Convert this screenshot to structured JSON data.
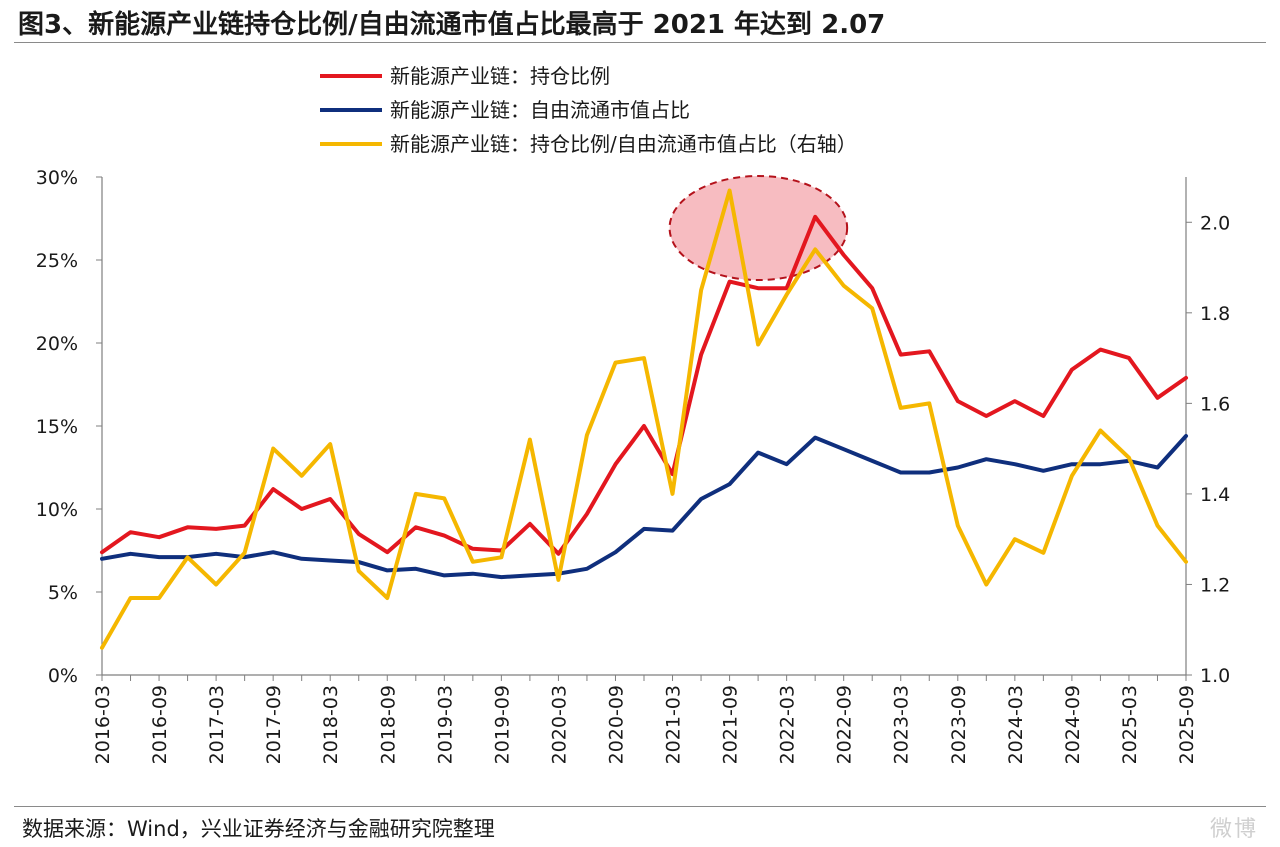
{
  "title": "图3、新能源产业链持仓比例/自由流通市值占比最高于 2021 年达到 2.07",
  "source": "数据来源：Wind，兴业证券经济与金融研究院整理",
  "watermark": "微博",
  "chart_data": {
    "type": "line",
    "title": "图3、新能源产业链持仓比例/自由流通市值占比最高于 2021 年达到 2.07",
    "categories": [
      "2016-03",
      "2016-06",
      "2016-09",
      "2016-12",
      "2017-03",
      "2017-06",
      "2017-09",
      "2017-12",
      "2018-03",
      "2018-06",
      "2018-09",
      "2018-12",
      "2019-03",
      "2019-06",
      "2019-09",
      "2019-12",
      "2020-03",
      "2020-06",
      "2020-09",
      "2020-12",
      "2021-03",
      "2021-06",
      "2021-09",
      "2021-12",
      "2022-03",
      "2022-06",
      "2022-09",
      "2022-12",
      "2023-03",
      "2023-06",
      "2023-09",
      "2023-12",
      "2024-03",
      "2024-06",
      "2024-09",
      "2024-12",
      "2025-03",
      "2025-06",
      "2025-09"
    ],
    "tick_labels": [
      "2016-03",
      "2016-09",
      "2017-03",
      "2017-09",
      "2018-03",
      "2018-09",
      "2019-03",
      "2019-09",
      "2020-03",
      "2020-09",
      "2021-03",
      "2021-09",
      "2022-03",
      "2022-09",
      "2023-03",
      "2023-09",
      "2024-03",
      "2024-09",
      "2025-03",
      "2025-09"
    ],
    "left_axis": {
      "ticks": [
        0,
        5,
        10,
        15,
        20,
        25,
        30
      ],
      "tick_labels": [
        "0%",
        "5%",
        "10%",
        "15%",
        "20%",
        "25%",
        "30%"
      ],
      "ylim": [
        0,
        30
      ],
      "unit": "%"
    },
    "right_axis": {
      "ticks": [
        1.0,
        1.2,
        1.4,
        1.6,
        1.8,
        2.0
      ],
      "tick_labels": [
        "1.0",
        "1.2",
        "1.4",
        "1.6",
        "1.8",
        "2.0"
      ],
      "ylim": [
        1.0,
        2.1
      ]
    },
    "series": [
      {
        "name": "新能源产业链：持仓比例",
        "axis": "left",
        "color": "#e3171f",
        "values": [
          7.4,
          8.6,
          8.3,
          8.9,
          8.8,
          9.0,
          11.2,
          10.0,
          10.6,
          8.5,
          7.4,
          8.9,
          8.4,
          7.6,
          7.5,
          9.1,
          7.3,
          9.7,
          12.7,
          15.0,
          12.1,
          19.3,
          23.7,
          23.3,
          23.3,
          27.6,
          25.3,
          23.3,
          19.3,
          19.5,
          16.5,
          15.6,
          16.5,
          15.6,
          18.4,
          19.6,
          19.1,
          16.7,
          17.9
        ]
      },
      {
        "name": "新能源产业链：自由流通市值占比",
        "axis": "left",
        "color": "#0f2f7d",
        "values": [
          7.0,
          7.3,
          7.1,
          7.1,
          7.3,
          7.1,
          7.4,
          7.0,
          6.9,
          6.8,
          6.3,
          6.4,
          6.0,
          6.1,
          5.9,
          6.0,
          6.1,
          6.4,
          7.4,
          8.8,
          8.7,
          10.6,
          11.5,
          13.4,
          12.7,
          14.3,
          13.6,
          12.9,
          12.2,
          12.2,
          12.5,
          13.0,
          12.7,
          12.3,
          12.7,
          12.7,
          12.9,
          12.5,
          14.4
        ]
      },
      {
        "name": "新能源产业链：持仓比例/自由流通市值占比（右轴）",
        "axis": "right",
        "color": "#f5b700",
        "values": [
          1.06,
          1.17,
          1.17,
          1.26,
          1.2,
          1.27,
          1.5,
          1.44,
          1.51,
          1.23,
          1.17,
          1.4,
          1.39,
          1.25,
          1.26,
          1.52,
          1.21,
          1.53,
          1.69,
          1.7,
          1.4,
          1.85,
          2.07,
          1.73,
          1.84,
          1.94,
          1.86,
          1.81,
          1.59,
          1.6,
          1.33,
          1.2,
          1.3,
          1.27,
          1.44,
          1.54,
          1.48,
          1.33,
          1.25
        ]
      }
    ],
    "annotations": [
      {
        "type": "highlight-ellipse",
        "around": [
          "2021-09",
          "2022-06"
        ],
        "color": "#f4a0a6"
      }
    ]
  }
}
